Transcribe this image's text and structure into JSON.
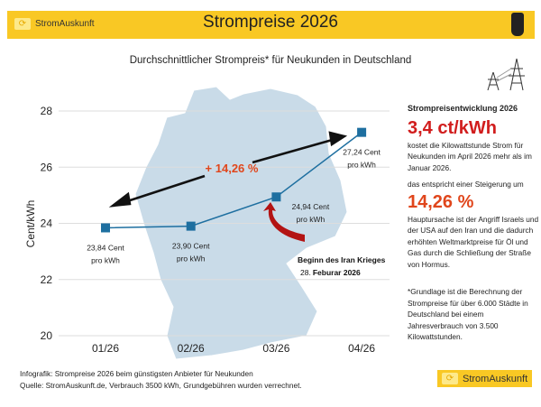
{
  "header": {
    "brand": "StromAuskunft",
    "title": "Strompreise 2026"
  },
  "subtitle": "Durchschnittlicher Strompreis* für Neukunden in Deutschland",
  "chart_data": {
    "type": "line",
    "ylabel": "Cent/kWh",
    "ylim": [
      20,
      28
    ],
    "yticks": [
      20,
      22,
      24,
      26,
      28
    ],
    "categories": [
      "01/26",
      "02/26",
      "03/26",
      "04/26"
    ],
    "values": [
      23.84,
      23.9,
      24.94,
      27.24
    ],
    "data_labels": [
      [
        "23,84 Cent",
        "pro kWh"
      ],
      [
        "23,90 Cent",
        "pro kWh"
      ],
      [
        "24,94 Cent",
        "pro kWh"
      ],
      [
        "27,24 Cent",
        "pro kWh"
      ]
    ],
    "grid": true,
    "color": "#1e6fa0",
    "annotations": {
      "change": "+ 14,26 %",
      "event_line1": "Beginn des Iran Krieges",
      "event_line2_prefix": "28.",
      "event_line2": "Feburar 2026"
    }
  },
  "side": {
    "heading": "Strompreisentwicklung 2026",
    "value1": "3,4 ct/kWh",
    "text1": "kostet die Kilowattstunde Strom für Neukunden im April 2026 mehr als im Januar 2026.",
    "text2": "das entspricht einer Steigerung um",
    "value2": "14,26 %",
    "text3": "Hauptursache ist der Angriff Israels und der USA auf den Iran und die dadurch erhöhten Weltmarktpreise für Öl und Gas durch die Schließung der Straße von Hormus.",
    "note": "*Grundlage ist die Berechnung der Strompreise für über 6.000 Städte in Deutschland bei einem Jahresverbrauch von 3.500 Kilowattstunden."
  },
  "footer": {
    "line1": "Infografik: Strompreise 2026 beim günstigsten Anbieter für Neukunden",
    "line2": "Quelle: StromAuskunft.de, Verbrauch 3500 kWh, Grundgebühren wurden verrechnet.",
    "brand": "StromAuskunft"
  }
}
